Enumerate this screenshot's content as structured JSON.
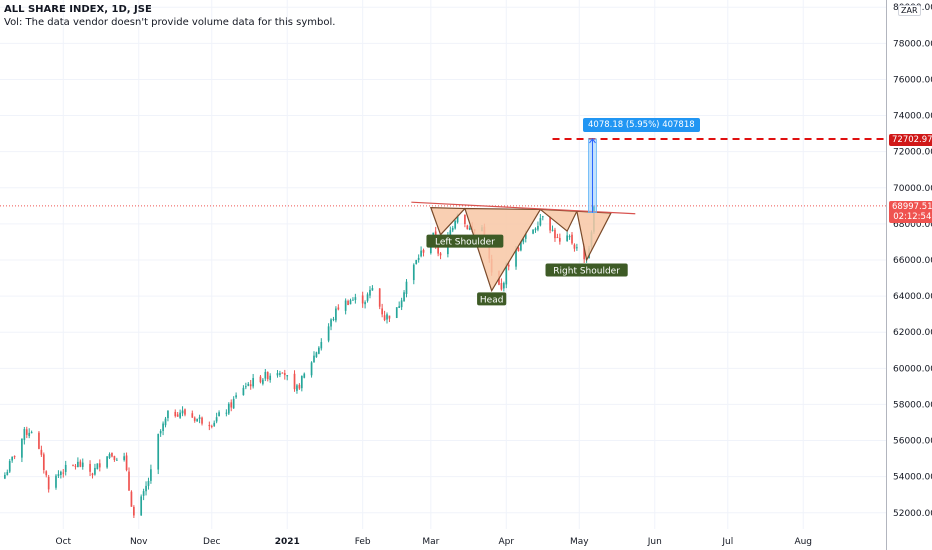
{
  "legend": {
    "title": "ALL SHARE INDEX, 1D, JSE",
    "subtitle": "Vol: The data vendor doesn't provide volume data for this symbol."
  },
  "colors": {
    "up": "#26a69a",
    "down": "#ef5350",
    "pattern_fill": "#f8c7a4",
    "pattern_line": "#7a4a2a",
    "target_line": "#e01010",
    "measure": "#2962ff",
    "label_bg": "#3e5b26"
  },
  "price_scale": {
    "currency": "ZAR",
    "last_price": "68997.51",
    "countdown": "02:12:54",
    "target_price": "72702.97"
  },
  "measurement": {
    "text": "4078.18 (5.95%) 407818"
  },
  "annotations": [
    {
      "label": "Left Shoulder",
      "date": "2021-03-15",
      "price": 67020
    },
    {
      "label": "Head",
      "date": "2021-03-26",
      "price": 63820
    },
    {
      "label": "Right Shoulder",
      "date": "2021-05-04",
      "price": 65420
    }
  ],
  "chart_data": {
    "type": "candlestick",
    "title": "ALL SHARE INDEX, 1D, JSE",
    "y_ticks": [
      52000,
      54000,
      56000,
      58000,
      60000,
      62000,
      64000,
      66000,
      68000,
      70000,
      72000,
      74000,
      76000,
      78000,
      80000
    ],
    "y_tick_labels": [
      "52000.00",
      "54000.00",
      "56000.00",
      "58000.00",
      "60000.00",
      "62000.00",
      "64000.00",
      "66000.00",
      "68000.00",
      "70000.00",
      "72000.00",
      "74000.00",
      "76000.00",
      "78000.00",
      "80000.00"
    ],
    "ylim": [
      51100,
      80400
    ],
    "xlim": [
      "2020-09-05",
      "2021-09-04"
    ],
    "x_ticks": [
      {
        "label": "Oct",
        "date": "2020-10-01"
      },
      {
        "label": "Nov",
        "date": "2020-11-01"
      },
      {
        "label": "Dec",
        "date": "2020-12-01"
      },
      {
        "label": "2021",
        "date": "2021-01-01"
      },
      {
        "label": "Feb",
        "date": "2021-02-01"
      },
      {
        "label": "Mar",
        "date": "2021-03-01"
      },
      {
        "label": "Apr",
        "date": "2021-04-01"
      },
      {
        "label": "May",
        "date": "2021-05-01"
      },
      {
        "label": "Jun",
        "date": "2021-06-01"
      },
      {
        "label": "Jul",
        "date": "2021-07-01"
      },
      {
        "label": "Aug",
        "date": "2021-08-01"
      }
    ],
    "close_path": [
      {
        "date": "2020-09-07",
        "close": 54100
      },
      {
        "date": "2020-09-15",
        "close": 56400
      },
      {
        "date": "2020-09-18",
        "close": 56600
      },
      {
        "date": "2020-09-22",
        "close": 55000
      },
      {
        "date": "2020-09-25",
        "close": 53500
      },
      {
        "date": "2020-09-30",
        "close": 54300
      },
      {
        "date": "2020-10-07",
        "close": 54700
      },
      {
        "date": "2020-10-13",
        "close": 54200
      },
      {
        "date": "2020-10-19",
        "close": 55300
      },
      {
        "date": "2020-10-26",
        "close": 55000
      },
      {
        "date": "2020-10-28",
        "close": 53300
      },
      {
        "date": "2020-10-30",
        "close": 51800
      },
      {
        "date": "2020-11-03",
        "close": 53000
      },
      {
        "date": "2020-11-06",
        "close": 54200
      },
      {
        "date": "2020-11-09",
        "close": 56200
      },
      {
        "date": "2020-11-13",
        "close": 57400
      },
      {
        "date": "2020-11-18",
        "close": 57600
      },
      {
        "date": "2020-11-25",
        "close": 57200
      },
      {
        "date": "2020-12-01",
        "close": 57000
      },
      {
        "date": "2020-12-08",
        "close": 57800
      },
      {
        "date": "2020-12-14",
        "close": 59000
      },
      {
        "date": "2020-12-22",
        "close": 59500
      },
      {
        "date": "2020-12-30",
        "close": 60000
      },
      {
        "date": "2021-01-04",
        "close": 58600
      },
      {
        "date": "2021-01-08",
        "close": 59600
      },
      {
        "date": "2021-01-15",
        "close": 61500
      },
      {
        "date": "2021-01-22",
        "close": 63400
      },
      {
        "date": "2021-01-27",
        "close": 63800
      },
      {
        "date": "2021-02-02",
        "close": 63800
      },
      {
        "date": "2021-02-05",
        "close": 64400
      },
      {
        "date": "2021-02-10",
        "close": 62800
      },
      {
        "date": "2021-02-15",
        "close": 63200
      },
      {
        "date": "2021-02-19",
        "close": 64800
      },
      {
        "date": "2021-02-24",
        "close": 66200
      },
      {
        "date": "2021-03-02",
        "close": 67300
      },
      {
        "date": "2021-03-05",
        "close": 66100
      },
      {
        "date": "2021-03-09",
        "close": 67600
      },
      {
        "date": "2021-03-12",
        "close": 68700
      },
      {
        "date": "2021-03-15",
        "close": 68000
      },
      {
        "date": "2021-03-18",
        "close": 67600
      },
      {
        "date": "2021-03-22",
        "close": 67800
      },
      {
        "date": "2021-03-24",
        "close": 66800
      },
      {
        "date": "2021-03-26",
        "close": 65200
      },
      {
        "date": "2021-03-30",
        "close": 64300
      },
      {
        "date": "2021-04-01",
        "close": 65600
      },
      {
        "date": "2021-04-06",
        "close": 66700
      },
      {
        "date": "2021-04-09",
        "close": 67300
      },
      {
        "date": "2021-04-13",
        "close": 67900
      },
      {
        "date": "2021-04-16",
        "close": 68600
      },
      {
        "date": "2021-04-20",
        "close": 67600
      },
      {
        "date": "2021-04-23",
        "close": 66900
      },
      {
        "date": "2021-04-27",
        "close": 67200
      },
      {
        "date": "2021-04-30",
        "close": 66600
      },
      {
        "date": "2021-05-04",
        "close": 66100
      },
      {
        "date": "2021-05-06",
        "close": 67400
      },
      {
        "date": "2021-05-07",
        "close": 68997.51
      }
    ],
    "pattern_outline": [
      {
        "date": "2021-03-01",
        "price": 68900
      },
      {
        "date": "2021-03-05",
        "price": 67400
      },
      {
        "date": "2021-03-15",
        "price": 68850
      },
      {
        "date": "2021-03-26",
        "price": 64300
      },
      {
        "date": "2021-04-15",
        "price": 68800
      },
      {
        "date": "2021-04-26",
        "price": 67600
      },
      {
        "date": "2021-04-30",
        "price": 68700
      },
      {
        "date": "2021-05-04",
        "price": 66000
      },
      {
        "date": "2021-05-14",
        "price": 68600
      }
    ],
    "neckline": [
      {
        "date": "2021-02-21",
        "price": 69200
      },
      {
        "date": "2021-05-24",
        "price": 68560
      }
    ],
    "target_line": {
      "price": 72702.97,
      "from": "2021-04-20"
    },
    "current_price": 68997.51,
    "measure": {
      "date": "2021-05-06",
      "from": 68625,
      "to": 72702.97
    }
  }
}
